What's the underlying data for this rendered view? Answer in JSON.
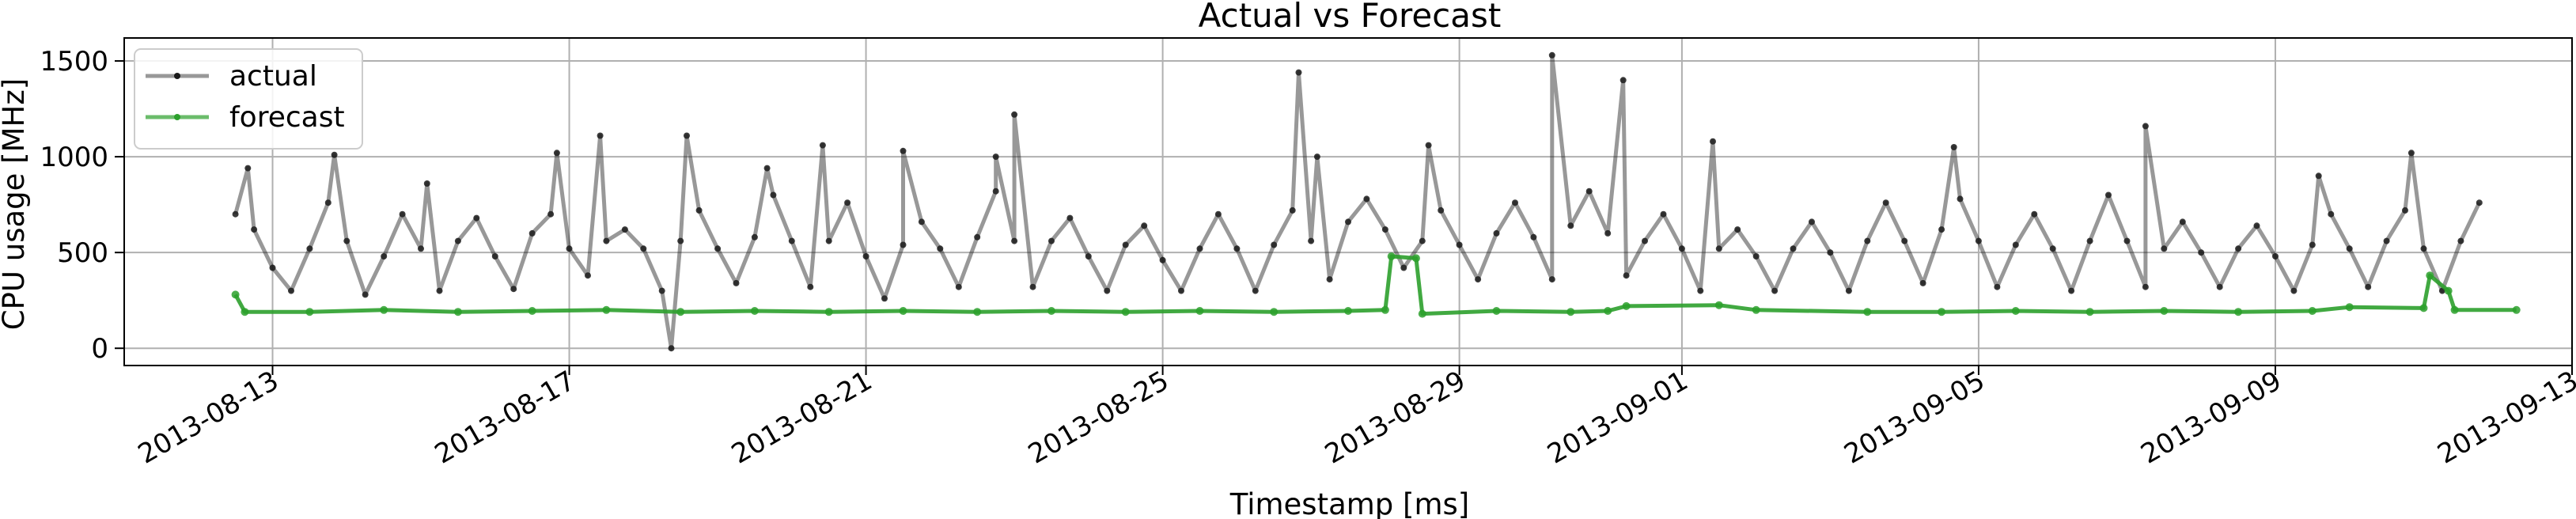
{
  "chart_data": {
    "type": "line",
    "title": "Actual vs Forecast",
    "xlabel": "Timestamp [ms]",
    "ylabel": "CPU usage [MHz]",
    "x_axis_type": "date",
    "xlim": [
      "2013-08-11T00:00:00",
      "2013-09-13T00:00:00"
    ],
    "ylim": [
      -90,
      1620
    ],
    "x_ticks": [
      "2013-08-13",
      "2013-08-17",
      "2013-08-21",
      "2013-08-25",
      "2013-08-29",
      "2013-09-01",
      "2013-09-05",
      "2013-09-09",
      "2013-09-13"
    ],
    "y_ticks": [
      0,
      500,
      1000,
      1500
    ],
    "grid": true,
    "legend_position": "top-left",
    "series": [
      {
        "name": "actual",
        "color": "#1a1a1a",
        "marker": "dot",
        "points": [
          [
            "2013-08-12T12:00",
            700
          ],
          [
            "2013-08-12T18:00",
            620
          ],
          [
            "2013-08-13T00:00",
            420
          ],
          [
            "2013-08-13T06:00",
            300
          ],
          [
            "2013-08-13T12:00",
            520
          ],
          [
            "2013-08-13T18:00",
            760
          ],
          [
            "2013-08-14T00:00",
            560
          ],
          [
            "2013-08-14T06:00",
            280
          ],
          [
            "2013-08-14T12:00",
            480
          ],
          [
            "2013-08-14T18:00",
            700
          ],
          [
            "2013-08-15T00:00",
            520
          ],
          [
            "2013-08-15T06:00",
            300
          ],
          [
            "2013-08-15T12:00",
            560
          ],
          [
            "2013-08-15T18:00",
            680
          ],
          [
            "2013-08-16T00:00",
            480
          ],
          [
            "2013-08-16T06:00",
            310
          ],
          [
            "2013-08-16T12:00",
            600
          ],
          [
            "2013-08-16T18:00",
            700
          ],
          [
            "2013-08-17T00:00",
            520
          ],
          [
            "2013-08-17T06:00",
            380
          ],
          [
            "2013-08-17T12:00",
            560
          ],
          [
            "2013-08-17T18:00",
            620
          ],
          [
            "2013-08-18T00:00",
            520
          ],
          [
            "2013-08-18T06:00",
            300
          ],
          [
            "2013-08-18T09:00",
            0
          ],
          [
            "2013-08-18T12:00",
            560
          ],
          [
            "2013-08-18T18:00",
            720
          ],
          [
            "2013-08-19T00:00",
            520
          ],
          [
            "2013-08-19T06:00",
            340
          ],
          [
            "2013-08-19T12:00",
            580
          ],
          [
            "2013-08-19T18:00",
            800
          ],
          [
            "2013-08-20T00:00",
            560
          ],
          [
            "2013-08-20T06:00",
            320
          ],
          [
            "2013-08-20T12:00",
            560
          ],
          [
            "2013-08-20T18:00",
            760
          ],
          [
            "2013-08-21T00:00",
            480
          ],
          [
            "2013-08-21T06:00",
            260
          ],
          [
            "2013-08-21T12:00",
            540
          ],
          [
            "2013-08-21T18:00",
            660
          ],
          [
            "2013-08-22T00:00",
            520
          ],
          [
            "2013-08-22T06:00",
            320
          ],
          [
            "2013-08-22T12:00",
            580
          ],
          [
            "2013-08-22T18:00",
            820
          ],
          [
            "2013-08-23T00:00",
            560
          ],
          [
            "2013-08-23T06:00",
            320
          ],
          [
            "2013-08-23T12:00",
            560
          ],
          [
            "2013-08-23T18:00",
            680
          ],
          [
            "2013-08-24T00:00",
            480
          ],
          [
            "2013-08-24T06:00",
            300
          ],
          [
            "2013-08-24T12:00",
            540
          ],
          [
            "2013-08-24T18:00",
            640
          ],
          [
            "2013-08-25T00:00",
            460
          ],
          [
            "2013-08-25T06:00",
            300
          ],
          [
            "2013-08-25T12:00",
            520
          ],
          [
            "2013-08-25T18:00",
            700
          ],
          [
            "2013-08-26T00:00",
            520
          ],
          [
            "2013-08-26T06:00",
            300
          ],
          [
            "2013-08-26T12:00",
            540
          ],
          [
            "2013-08-26T18:00",
            720
          ],
          [
            "2013-08-27T00:00",
            560
          ],
          [
            "2013-08-27T06:00",
            360
          ],
          [
            "2013-08-27T12:00",
            660
          ],
          [
            "2013-08-27T18:00",
            780
          ],
          [
            "2013-08-28T00:00",
            620
          ],
          [
            "2013-08-28T06:00",
            420
          ],
          [
            "2013-08-28T12:00",
            560
          ],
          [
            "2013-08-28T18:00",
            720
          ],
          [
            "2013-08-29T00:00",
            540
          ],
          [
            "2013-08-29T06:00",
            360
          ],
          [
            "2013-08-29T12:00",
            600
          ],
          [
            "2013-08-29T18:00",
            760
          ],
          [
            "2013-08-30T00:00",
            580
          ],
          [
            "2013-08-30T06:00",
            360
          ],
          [
            "2013-08-30T12:00",
            640
          ],
          [
            "2013-08-30T18:00",
            820
          ],
          [
            "2013-08-31T00:00",
            600
          ],
          [
            "2013-08-31T06:00",
            380
          ],
          [
            "2013-08-31T12:00",
            560
          ],
          [
            "2013-08-31T18:00",
            700
          ],
          [
            "2013-09-01T00:00",
            520
          ],
          [
            "2013-09-01T06:00",
            300
          ],
          [
            "2013-09-01T12:00",
            520
          ],
          [
            "2013-09-01T18:00",
            620
          ],
          [
            "2013-09-02T00:00",
            480
          ],
          [
            "2013-09-02T06:00",
            300
          ],
          [
            "2013-09-02T12:00",
            520
          ],
          [
            "2013-09-02T18:00",
            660
          ],
          [
            "2013-09-03T00:00",
            500
          ],
          [
            "2013-09-03T06:00",
            300
          ],
          [
            "2013-09-03T12:00",
            560
          ],
          [
            "2013-09-03T18:00",
            760
          ],
          [
            "2013-09-04T00:00",
            560
          ],
          [
            "2013-09-04T06:00",
            340
          ],
          [
            "2013-09-04T12:00",
            620
          ],
          [
            "2013-09-04T18:00",
            780
          ],
          [
            "2013-09-05T00:00",
            560
          ],
          [
            "2013-09-05T06:00",
            320
          ],
          [
            "2013-09-05T12:00",
            540
          ],
          [
            "2013-09-05T18:00",
            700
          ],
          [
            "2013-09-06T00:00",
            520
          ],
          [
            "2013-09-06T06:00",
            300
          ],
          [
            "2013-09-06T12:00",
            560
          ],
          [
            "2013-09-06T18:00",
            800
          ],
          [
            "2013-09-07T00:00",
            560
          ],
          [
            "2013-09-07T06:00",
            320
          ],
          [
            "2013-09-07T12:00",
            520
          ],
          [
            "2013-09-07T18:00",
            660
          ],
          [
            "2013-09-08T00:00",
            500
          ],
          [
            "2013-09-08T06:00",
            320
          ],
          [
            "2013-09-08T12:00",
            520
          ],
          [
            "2013-09-08T18:00",
            640
          ],
          [
            "2013-09-09T00:00",
            480
          ],
          [
            "2013-09-09T06:00",
            300
          ],
          [
            "2013-09-09T12:00",
            540
          ],
          [
            "2013-09-09T18:00",
            700
          ],
          [
            "2013-09-10T00:00",
            520
          ],
          [
            "2013-09-10T06:00",
            320
          ],
          [
            "2013-09-10T12:00",
            560
          ],
          [
            "2013-09-10T18:00",
            720
          ],
          [
            "2013-09-11T00:00",
            520
          ],
          [
            "2013-09-11T06:00",
            300
          ],
          [
            "2013-09-11T12:00",
            560
          ],
          [
            "2013-09-11T18:00",
            760
          ]
        ],
        "spikes": [
          [
            "2013-08-12T16:00",
            940
          ],
          [
            "2013-08-13T20:00",
            1010
          ],
          [
            "2013-08-15T02:00",
            860
          ],
          [
            "2013-08-16T20:00",
            1020
          ],
          [
            "2013-08-17T10:00",
            1110
          ],
          [
            "2013-08-18T14:00",
            1110
          ],
          [
            "2013-08-19T16:00",
            940
          ],
          [
            "2013-08-20T10:00",
            1060
          ],
          [
            "2013-08-21T12:00",
            1030
          ],
          [
            "2013-08-22T18:00",
            1000
          ],
          [
            "2013-08-23T00:00",
            1220
          ],
          [
            "2013-08-26T20:00",
            1440
          ],
          [
            "2013-08-27T02:00",
            1000
          ],
          [
            "2013-08-28T14:00",
            1060
          ],
          [
            "2013-08-30T06:00",
            1530
          ],
          [
            "2013-08-31T05:00",
            1400
          ],
          [
            "2013-09-01T10:00",
            1080
          ],
          [
            "2013-09-04T16:00",
            1050
          ],
          [
            "2013-09-07T06:00",
            1160
          ],
          [
            "2013-09-09T14:00",
            900
          ],
          [
            "2013-09-10T20:00",
            1020
          ]
        ]
      },
      {
        "name": "forecast",
        "color": "#2ca02c",
        "marker": "dot",
        "points": [
          [
            "2013-08-12T12:00",
            280
          ],
          [
            "2013-08-12T15:00",
            190
          ],
          [
            "2013-08-13T12:00",
            190
          ],
          [
            "2013-08-14T12:00",
            200
          ],
          [
            "2013-08-15T12:00",
            190
          ],
          [
            "2013-08-16T12:00",
            195
          ],
          [
            "2013-08-17T12:00",
            200
          ],
          [
            "2013-08-18T12:00",
            190
          ],
          [
            "2013-08-19T12:00",
            195
          ],
          [
            "2013-08-20T12:00",
            190
          ],
          [
            "2013-08-21T12:00",
            195
          ],
          [
            "2013-08-22T12:00",
            190
          ],
          [
            "2013-08-23T12:00",
            195
          ],
          [
            "2013-08-24T12:00",
            190
          ],
          [
            "2013-08-25T12:00",
            195
          ],
          [
            "2013-08-26T12:00",
            190
          ],
          [
            "2013-08-27T12:00",
            195
          ],
          [
            "2013-08-28T00:00",
            200
          ],
          [
            "2013-08-28T02:00",
            480
          ],
          [
            "2013-08-28T10:00",
            470
          ],
          [
            "2013-08-28T12:00",
            180
          ],
          [
            "2013-08-29T12:00",
            195
          ],
          [
            "2013-08-30T12:00",
            190
          ],
          [
            "2013-08-31T00:00",
            195
          ],
          [
            "2013-08-31T06:00",
            220
          ],
          [
            "2013-09-01T12:00",
            225
          ],
          [
            "2013-09-02T00:00",
            200
          ],
          [
            "2013-09-03T12:00",
            190
          ],
          [
            "2013-09-04T12:00",
            190
          ],
          [
            "2013-09-05T12:00",
            195
          ],
          [
            "2013-09-06T12:00",
            190
          ],
          [
            "2013-09-07T12:00",
            195
          ],
          [
            "2013-09-08T12:00",
            190
          ],
          [
            "2013-09-09T12:00",
            195
          ],
          [
            "2013-09-10T00:00",
            215
          ],
          [
            "2013-09-11T00:00",
            210
          ],
          [
            "2013-09-11T02:00",
            380
          ],
          [
            "2013-09-11T08:00",
            300
          ],
          [
            "2013-09-11T10:00",
            200
          ],
          [
            "2013-09-12T06:00",
            200
          ]
        ]
      }
    ]
  }
}
